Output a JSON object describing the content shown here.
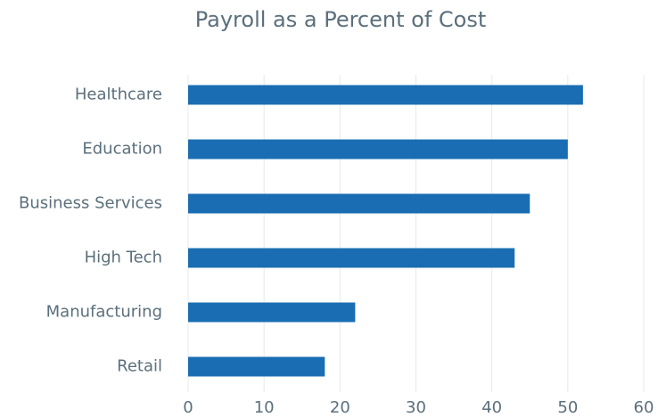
{
  "chart_data": {
    "type": "hbar",
    "title": "Payroll as a Percent of Cost",
    "categories": [
      "Healthcare",
      "Education",
      "Business Services",
      "High Tech",
      "Manufacturing",
      "Retail"
    ],
    "values": [
      52,
      50,
      45,
      43,
      22,
      18
    ],
    "color": "#1a6db3",
    "xlim": [
      0,
      60
    ],
    "xticks": [
      0,
      10,
      20,
      30,
      40,
      50,
      60
    ],
    "grid": true
  }
}
